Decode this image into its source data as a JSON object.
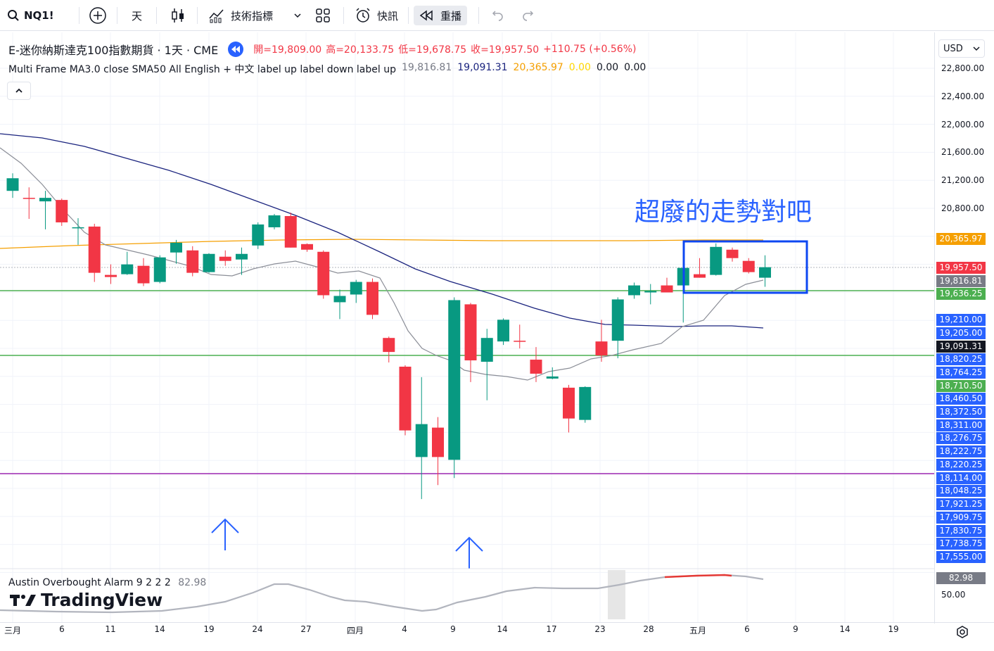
{
  "toolbar": {
    "symbol": "NQ1!",
    "interval": "天",
    "indicators_label": "技術指標",
    "alert_label": "快訊",
    "replay_label": "重播"
  },
  "legend": {
    "title": "E-迷你納斯達克100指數期貨 · 1天 · CME",
    "open": "開=19,809.00",
    "high": "高=20,133.75",
    "low": "低=19,678.75",
    "close": "收=19,957.50",
    "change": "+110.75 (+0.56%)",
    "indicator_name": "Multi Frame MA3.0 close SMA50 All English + 中文 label up label down label up",
    "v1": "19,816.81",
    "v2": "19,091.31",
    "v3": "20,365.97",
    "v4": "0.00",
    "v5": "0.00",
    "v6": "0.00"
  },
  "currency": "USD",
  "annotation": "超廢的走勢對吧",
  "indicator_pane": {
    "name": "Austin Overbought Alarm 9 2 2 2",
    "value": "82.98",
    "axis_value": "82.98",
    "axis_tick": "50.00"
  },
  "brand": "TradingView",
  "price_ticks": [
    "22,800.00",
    "22,400.00",
    "22,000.00",
    "21,600.00",
    "21,200.00",
    "20,800.00"
  ],
  "price_labels": [
    {
      "text": "20,365.97",
      "color": "#f59f00"
    },
    {
      "text": "19,957.50",
      "color": "#f23645"
    },
    {
      "text": "19,816.81",
      "color": "#787b86"
    },
    {
      "text": "19,636.25",
      "color": "#4caf50"
    },
    {
      "text": "19,210.00",
      "color": "#2962ff"
    },
    {
      "text": "19,205.00",
      "color": "#2962ff"
    },
    {
      "text": "19,091.31",
      "color": "#131722"
    },
    {
      "text": "18,820.25",
      "color": "#2962ff"
    },
    {
      "text": "18,764.25",
      "color": "#2962ff"
    },
    {
      "text": "18,710.50",
      "color": "#4caf50"
    },
    {
      "text": "18,460.50",
      "color": "#2962ff"
    },
    {
      "text": "18,372.50",
      "color": "#2962ff"
    },
    {
      "text": "18,311.00",
      "color": "#2962ff"
    },
    {
      "text": "18,276.75",
      "color": "#2962ff"
    },
    {
      "text": "18,222.75",
      "color": "#2962ff"
    },
    {
      "text": "18,220.25",
      "color": "#2962ff"
    },
    {
      "text": "18,114.00",
      "color": "#2962ff"
    },
    {
      "text": "18,048.25",
      "color": "#2962ff"
    },
    {
      "text": "17,921.25",
      "color": "#2962ff"
    },
    {
      "text": "17,909.75",
      "color": "#2962ff"
    },
    {
      "text": "17,830.75",
      "color": "#2962ff"
    },
    {
      "text": "17,738.75",
      "color": "#2962ff"
    },
    {
      "text": "17,555.00",
      "color": "#2962ff"
    }
  ],
  "time_ticks": [
    "三月",
    "6",
    "11",
    "14",
    "19",
    "24",
    "27",
    "四月",
    "4",
    "9",
    "14",
    "17",
    "23",
    "28",
    "五月",
    "6",
    "9",
    "14",
    "19"
  ],
  "candles": [
    {
      "o": 21050,
      "c": 21230,
      "h": 21300,
      "l": 20950
    },
    {
      "o": 20950,
      "c": 20940,
      "h": 21100,
      "l": 20650
    },
    {
      "o": 20900,
      "c": 20950,
      "h": 21050,
      "l": 20500
    },
    {
      "o": 20920,
      "c": 20600,
      "h": 20940,
      "l": 20550
    },
    {
      "o": 20520,
      "c": 20530,
      "h": 20660,
      "l": 20280
    },
    {
      "o": 20540,
      "c": 19880,
      "h": 20580,
      "l": 19750
    },
    {
      "o": 19850,
      "c": 19820,
      "h": 20000,
      "l": 19720
    },
    {
      "o": 19860,
      "c": 20000,
      "h": 20180,
      "l": 19850
    },
    {
      "o": 19980,
      "c": 19730,
      "h": 20090,
      "l": 19690
    },
    {
      "o": 19750,
      "c": 20100,
      "h": 20130,
      "l": 19730
    },
    {
      "o": 20170,
      "c": 20310,
      "h": 20350,
      "l": 20010
    },
    {
      "o": 20200,
      "c": 19880,
      "h": 20260,
      "l": 19830
    },
    {
      "o": 19890,
      "c": 20150,
      "h": 20160,
      "l": 19880
    },
    {
      "o": 20110,
      "c": 20050,
      "h": 20200,
      "l": 19980
    },
    {
      "o": 20070,
      "c": 20150,
      "h": 20240,
      "l": 19850
    },
    {
      "o": 20270,
      "c": 20570,
      "h": 20600,
      "l": 20220
    },
    {
      "o": 20530,
      "c": 20700,
      "h": 20720,
      "l": 20500
    },
    {
      "o": 20690,
      "c": 20240,
      "h": 20740,
      "l": 20240
    },
    {
      "o": 20290,
      "c": 20210,
      "h": 20300,
      "l": 20180
    },
    {
      "o": 20180,
      "c": 19560,
      "h": 20200,
      "l": 19510
    },
    {
      "o": 19460,
      "c": 19550,
      "h": 19640,
      "l": 19220
    },
    {
      "o": 19570,
      "c": 19750,
      "h": 19780,
      "l": 19450
    },
    {
      "o": 19750,
      "c": 19280,
      "h": 19800,
      "l": 19220
    },
    {
      "o": 18950,
      "c": 18750,
      "h": 18970,
      "l": 18600
    },
    {
      "o": 18540,
      "c": 17630,
      "h": 18560,
      "l": 17560
    },
    {
      "o": 17250,
      "c": 17720,
      "h": 18390,
      "l": 16650
    },
    {
      "o": 17670,
      "c": 17250,
      "h": 17820,
      "l": 16850
    },
    {
      "o": 17210,
      "c": 19490,
      "h": 19530,
      "l": 16950
    },
    {
      "o": 19430,
      "c": 18630,
      "h": 19450,
      "l": 18320
    },
    {
      "o": 18610,
      "c": 18950,
      "h": 19080,
      "l": 18060
    },
    {
      "o": 18900,
      "c": 19210,
      "h": 19230,
      "l": 18850
    },
    {
      "o": 18910,
      "c": 18900,
      "h": 19140,
      "l": 18800
    },
    {
      "o": 18640,
      "c": 18440,
      "h": 18820,
      "l": 18320
    },
    {
      "o": 18370,
      "c": 18400,
      "h": 18530,
      "l": 18360
    },
    {
      "o": 18240,
      "c": 17800,
      "h": 18280,
      "l": 17600
    },
    {
      "o": 17780,
      "c": 18250,
      "h": 18260,
      "l": 17740
    },
    {
      "o": 18900,
      "c": 18700,
      "h": 19210,
      "l": 18610
    },
    {
      "o": 18910,
      "c": 19500,
      "h": 19530,
      "l": 18660
    },
    {
      "o": 19560,
      "c": 19700,
      "h": 19740,
      "l": 19510
    },
    {
      "o": 19600,
      "c": 19620,
      "h": 19720,
      "l": 19430
    },
    {
      "o": 19700,
      "c": 19600,
      "h": 19810,
      "l": 19600
    },
    {
      "o": 19700,
      "c": 19950,
      "h": 19960,
      "l": 19170
    },
    {
      "o": 19860,
      "c": 19810,
      "h": 20090,
      "l": 19810
    },
    {
      "o": 19850,
      "c": 20250,
      "h": 20300,
      "l": 19840
    },
    {
      "o": 20210,
      "c": 20090,
      "h": 20240,
      "l": 20040
    },
    {
      "o": 20050,
      "c": 19890,
      "h": 20090,
      "l": 19870
    },
    {
      "o": 19810,
      "c": 19960,
      "h": 20130,
      "l": 19680
    }
  ]
}
